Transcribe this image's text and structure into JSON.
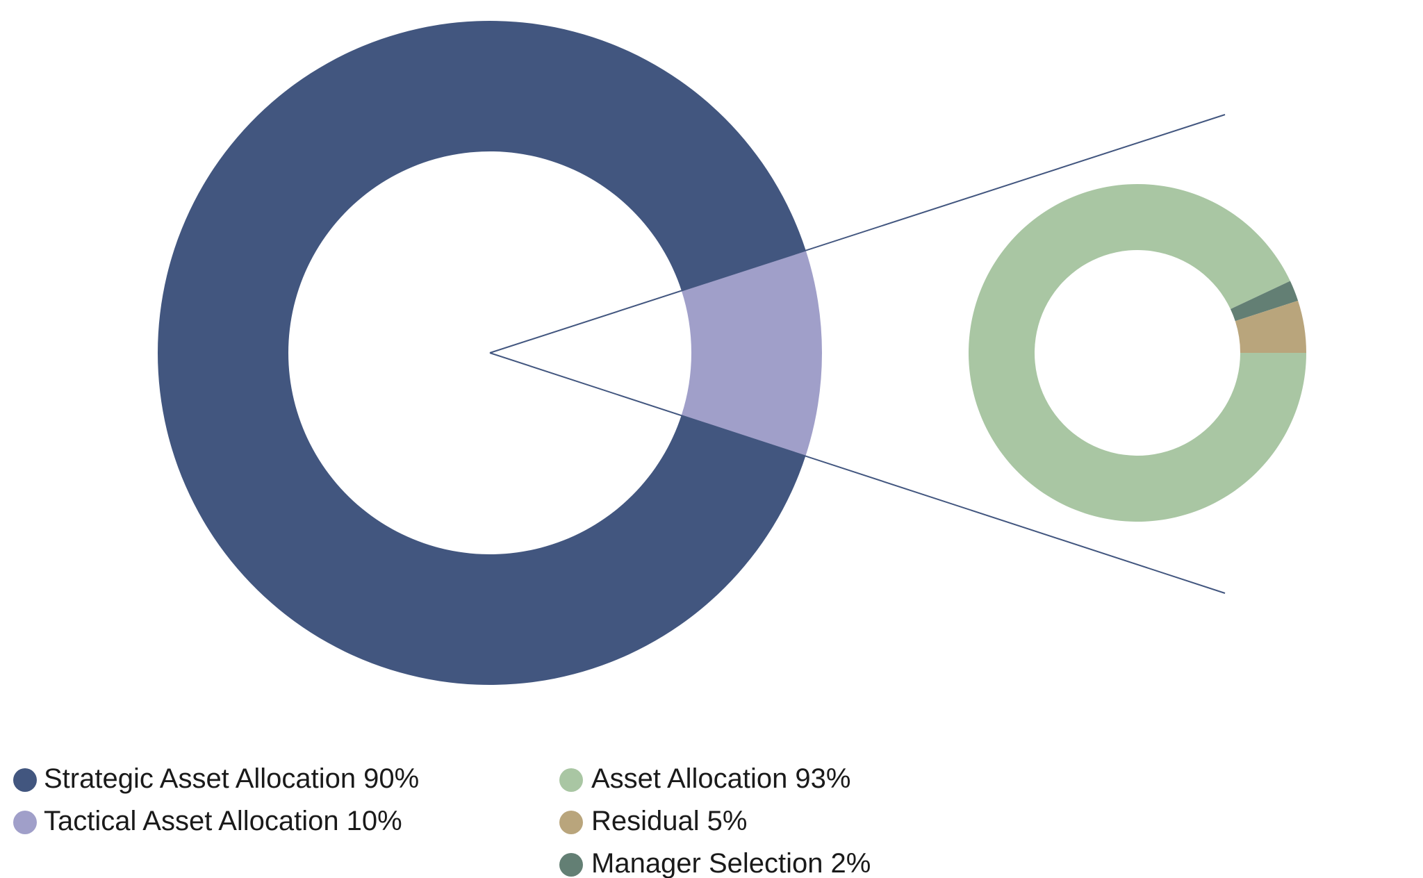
{
  "chart_data": [
    {
      "type": "pie",
      "categories": [
        "Strategic Asset Allocation",
        "Tactical Asset Allocation"
      ],
      "values": [
        90,
        10
      ],
      "value_labels": [
        "90%",
        "10%"
      ],
      "colors": [
        "#42567f",
        "#a09fc9"
      ]
    },
    {
      "type": "pie",
      "categories": [
        "Asset Allocation",
        "Residual",
        "Manager Selection"
      ],
      "values": [
        93,
        5,
        2
      ],
      "value_labels": [
        "93%",
        "5%",
        "2%"
      ],
      "colors": [
        "#a9c6a3",
        "#b9a57c",
        "#637f74"
      ]
    }
  ]
}
